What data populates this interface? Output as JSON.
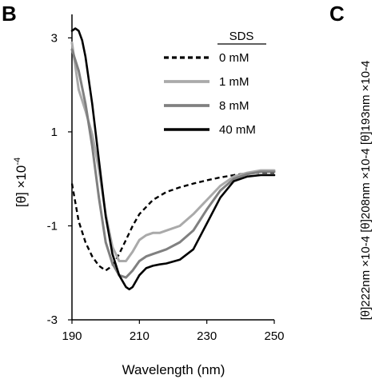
{
  "panel_b_label": "B",
  "panel_c_label": "C",
  "panel_c_ylabel": "[θ]222nm ×10-4 [θ]208nm ×10-4 [θ]193nm ×10-4",
  "colors": {
    "axis": "#000000",
    "series": [
      "#000000",
      "#aaaaaa",
      "#808080",
      "#000000"
    ]
  },
  "chart_data": {
    "type": "line",
    "title": "",
    "xlabel": "Wavelength (nm)",
    "ylabel": "[θ] ×10-4",
    "xlim": [
      190,
      250
    ],
    "ylim": [
      -3,
      3.5
    ],
    "xticks": [
      "190",
      "210",
      "230",
      "250"
    ],
    "yticks": [
      "3",
      "1",
      "-1",
      "-3"
    ],
    "legend": {
      "title": "SDS",
      "placement": "top-right",
      "entries": [
        "0 mM",
        "1 mM",
        "8 mM",
        "40 mM"
      ]
    },
    "series": [
      {
        "name": "0 mM",
        "style": "dashed",
        "x": [
          190,
          192,
          194,
          196,
          198,
          200,
          202,
          204,
          206,
          208,
          210,
          214,
          218,
          222,
          226,
          230,
          234,
          238,
          242,
          246,
          250
        ],
        "y": [
          -0.1,
          -0.9,
          -1.35,
          -1.65,
          -1.85,
          -1.95,
          -1.85,
          -1.6,
          -1.3,
          -1.0,
          -0.75,
          -0.45,
          -0.28,
          -0.18,
          -0.1,
          -0.03,
          0.03,
          0.08,
          0.12,
          0.13,
          0.13
        ]
      },
      {
        "name": "1 mM",
        "style": "solid",
        "x": [
          190,
          192,
          194,
          196,
          198,
          200,
          202,
          204,
          206,
          208,
          210,
          212,
          214,
          216,
          218,
          222,
          226,
          230,
          234,
          238,
          242,
          246,
          250
        ],
        "y": [
          2.9,
          1.9,
          1.45,
          0.95,
          0.2,
          -0.75,
          -1.45,
          -1.75,
          -1.75,
          -1.55,
          -1.3,
          -1.2,
          -1.15,
          -1.15,
          -1.1,
          -1.0,
          -0.75,
          -0.45,
          -0.15,
          0.05,
          0.13,
          0.18,
          0.18
        ]
      },
      {
        "name": "8 mM",
        "style": "solid",
        "x": [
          190,
          192,
          194,
          196,
          198,
          200,
          202,
          204,
          206,
          208,
          210,
          212,
          214,
          216,
          218,
          222,
          226,
          230,
          234,
          238,
          242,
          246,
          250
        ],
        "y": [
          2.75,
          2.3,
          1.6,
          0.7,
          -0.4,
          -1.35,
          -1.8,
          -2.05,
          -2.1,
          -1.95,
          -1.75,
          -1.65,
          -1.6,
          -1.55,
          -1.5,
          -1.35,
          -1.1,
          -0.65,
          -0.25,
          0.0,
          0.1,
          0.15,
          0.15
        ]
      },
      {
        "name": "40 mM",
        "style": "solid",
        "x": [
          190,
          191,
          192,
          193,
          194,
          196,
          198,
          200,
          202,
          204,
          206,
          207,
          208,
          210,
          212,
          214,
          216,
          218,
          222,
          226,
          230,
          234,
          238,
          242,
          246,
          250
        ],
        "y": [
          3.15,
          3.2,
          3.15,
          2.95,
          2.6,
          1.6,
          0.4,
          -0.8,
          -1.6,
          -2.05,
          -2.3,
          -2.35,
          -2.3,
          -2.05,
          -1.9,
          -1.85,
          -1.82,
          -1.8,
          -1.72,
          -1.5,
          -0.95,
          -0.4,
          -0.05,
          0.05,
          0.08,
          0.08
        ]
      }
    ]
  }
}
